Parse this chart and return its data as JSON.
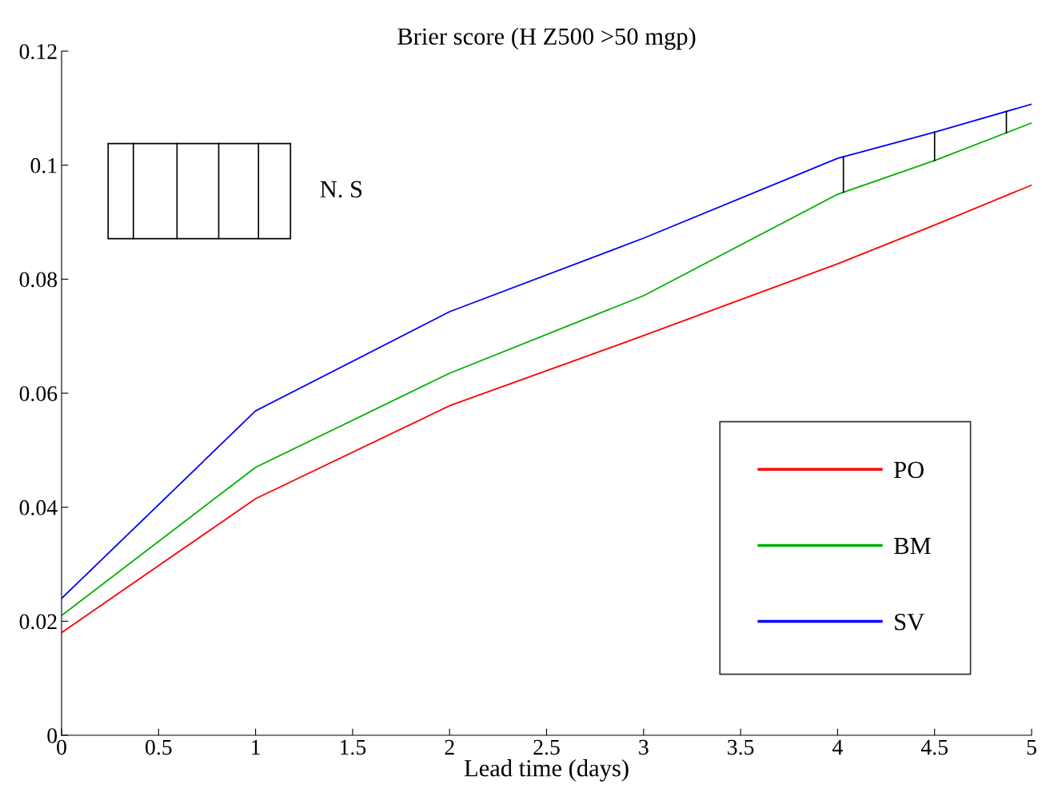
{
  "chart_data": {
    "type": "line",
    "title": "Brier score (H Z500 >50 mgp)",
    "xlabel": "Lead time (days)",
    "x": [
      0,
      1,
      2,
      3,
      4,
      4.5,
      5
    ],
    "series": [
      {
        "name": "PO",
        "color": "#ff0000",
        "values": [
          0.018,
          0.0415,
          0.0578,
          0.0701,
          0.0827,
          0.0895,
          0.0965
        ]
      },
      {
        "name": "BM",
        "color": "#00b000",
        "values": [
          0.021,
          0.047,
          0.0635,
          0.0771,
          0.0949,
          0.1008,
          0.1074
        ]
      },
      {
        "name": "SV",
        "color": "#0000ff",
        "values": [
          0.024,
          0.0569,
          0.0743,
          0.0872,
          0.1012,
          0.1058,
          0.1107
        ]
      }
    ],
    "xlim": [
      0,
      5
    ],
    "ylim": [
      0,
      0.12
    ],
    "xticks": [
      0,
      0.5,
      1,
      1.5,
      2,
      2.5,
      3,
      3.5,
      4,
      4.5,
      5
    ],
    "yticks": [
      0,
      0.02,
      0.04,
      0.06,
      0.08,
      0.1,
      0.12
    ],
    "annotations": [
      "N. S"
    ],
    "legend": "bottom right",
    "grid": false,
    "marker": "none",
    "line_style": "solid"
  }
}
